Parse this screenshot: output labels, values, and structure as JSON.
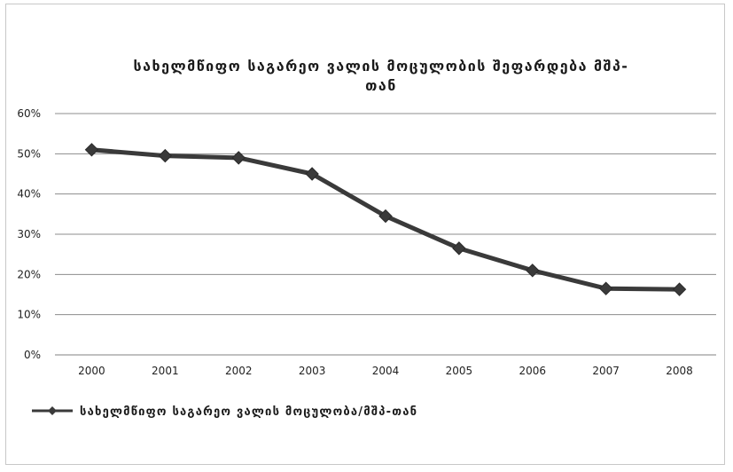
{
  "chart_data": {
    "type": "line",
    "title_line1": "სახელმწიფო საგარეო ვალის მოცულობის შეფარდება მშპ-",
    "title_line2": "თან",
    "categories": [
      "2000",
      "2001",
      "2002",
      "2003",
      "2004",
      "2005",
      "2006",
      "2007",
      "2008"
    ],
    "series": [
      {
        "name": "სახელმწიფო საგარეო ვალის მოცულობა/მშპ-თან",
        "values": [
          51,
          49.5,
          49,
          45,
          34.5,
          26.5,
          21,
          16.5,
          16.3
        ],
        "color": "#3a3a3a"
      }
    ],
    "ylim": [
      0,
      60
    ],
    "yticks": [
      "0%",
      "10%",
      "20%",
      "30%",
      "40%",
      "50%",
      "60%"
    ],
    "grid": true,
    "legend_position": "bottom-left",
    "marker": "diamond"
  }
}
